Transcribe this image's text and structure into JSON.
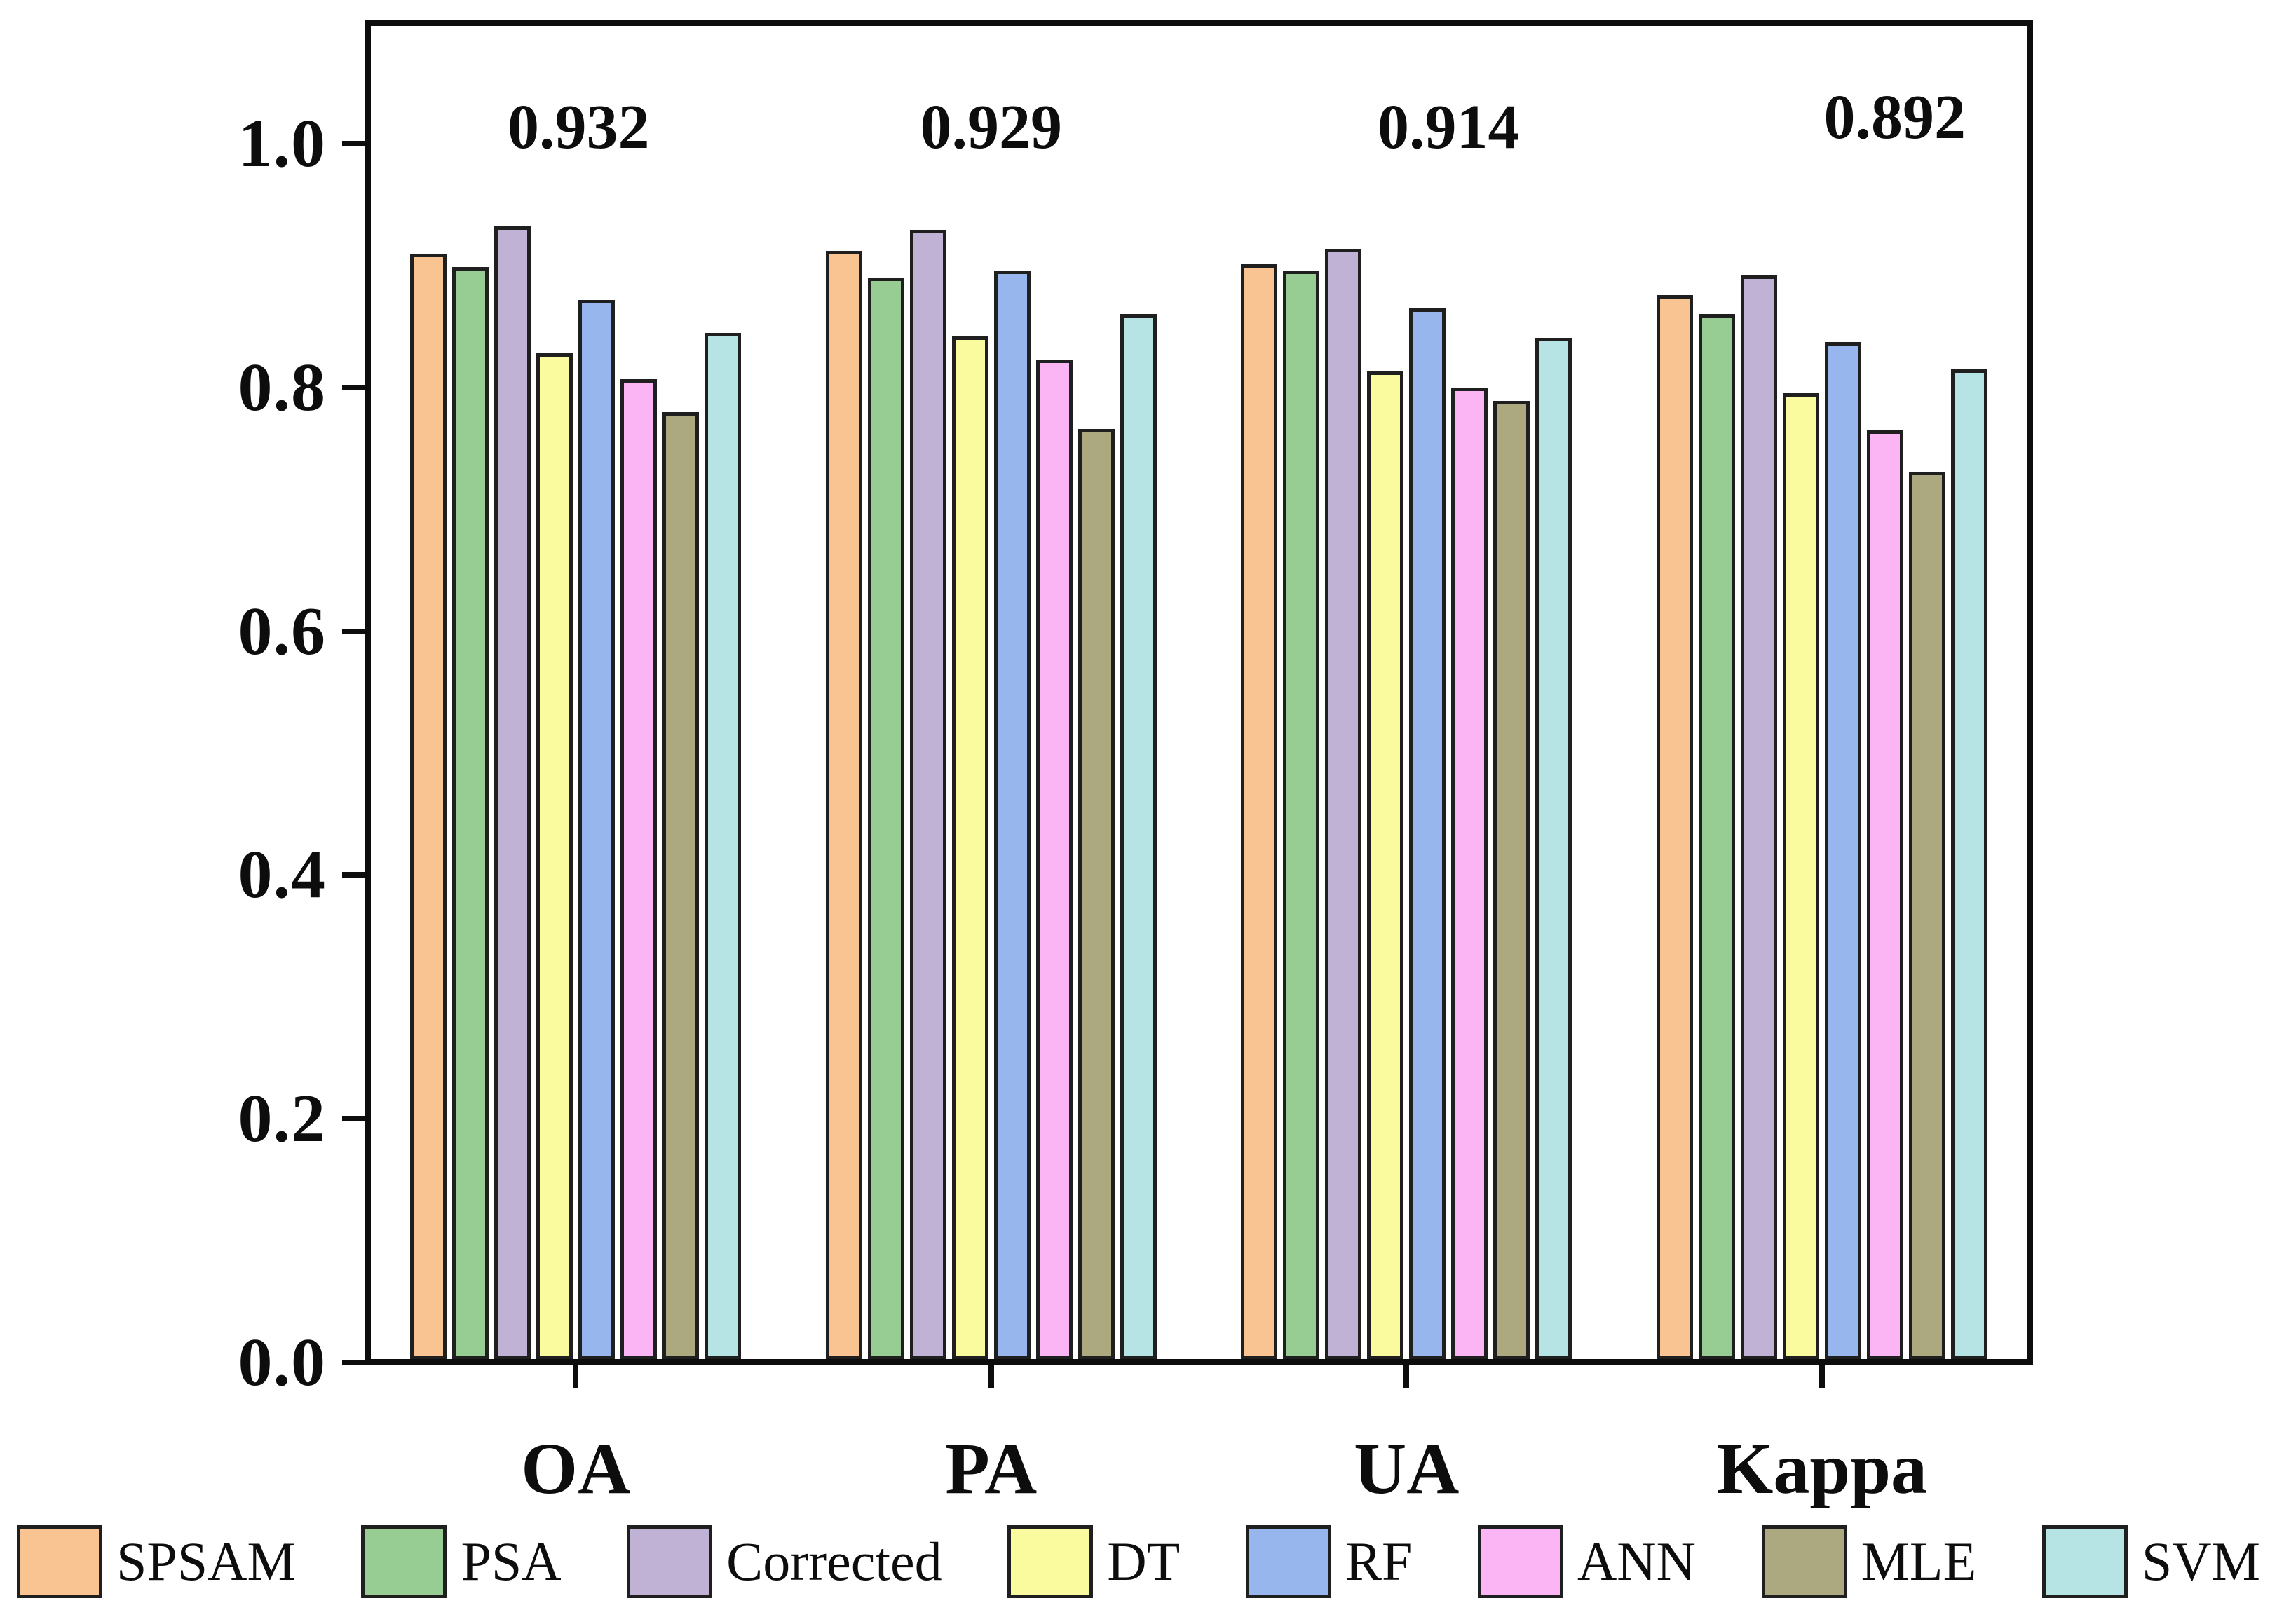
{
  "figure": {
    "background": "#ffffff",
    "frame_color": "#0d0d0d"
  },
  "chart_data": {
    "type": "bar",
    "title": "",
    "xlabel": "",
    "ylabel": "",
    "categories": [
      "OA",
      "PA",
      "UA",
      "Kappa"
    ],
    "series": [
      {
        "name": "SPSAM",
        "color": "#F9C491",
        "values": [
          0.91,
          0.912,
          0.901,
          0.876
        ]
      },
      {
        "name": "PSA",
        "color": "#97CD93",
        "values": [
          0.899,
          0.89,
          0.896,
          0.86
        ]
      },
      {
        "name": "Corrected",
        "color": "#BFB2D5",
        "values": [
          0.932,
          0.929,
          0.914,
          0.892
        ]
      },
      {
        "name": "DT",
        "color": "#FAFA9F",
        "values": [
          0.828,
          0.842,
          0.813,
          0.795
        ]
      },
      {
        "name": "RF",
        "color": "#98B6EE",
        "values": [
          0.872,
          0.896,
          0.865,
          0.837
        ]
      },
      {
        "name": "ANN",
        "color": "#FBB4F4",
        "values": [
          0.807,
          0.823,
          0.8,
          0.765
        ]
      },
      {
        "name": "MLE",
        "color": "#ACA981",
        "values": [
          0.78,
          0.766,
          0.789,
          0.731
        ]
      },
      {
        "name": "SVM",
        "color": "#B6E3E4",
        "values": [
          0.845,
          0.86,
          0.841,
          0.815
        ]
      }
    ],
    "annotations": [
      {
        "label": "0.932",
        "category": "OA"
      },
      {
        "label": "0.929",
        "category": "PA"
      },
      {
        "label": "0.914",
        "category": "UA"
      },
      {
        "label": "0.892",
        "category": "Kappa"
      }
    ],
    "yticks": [
      "0.0",
      "0.2",
      "0.4",
      "0.6",
      "0.8",
      "1.0"
    ],
    "ylim": [
      0.0,
      1.1
    ],
    "grid": false,
    "legend_position": "bottom"
  }
}
